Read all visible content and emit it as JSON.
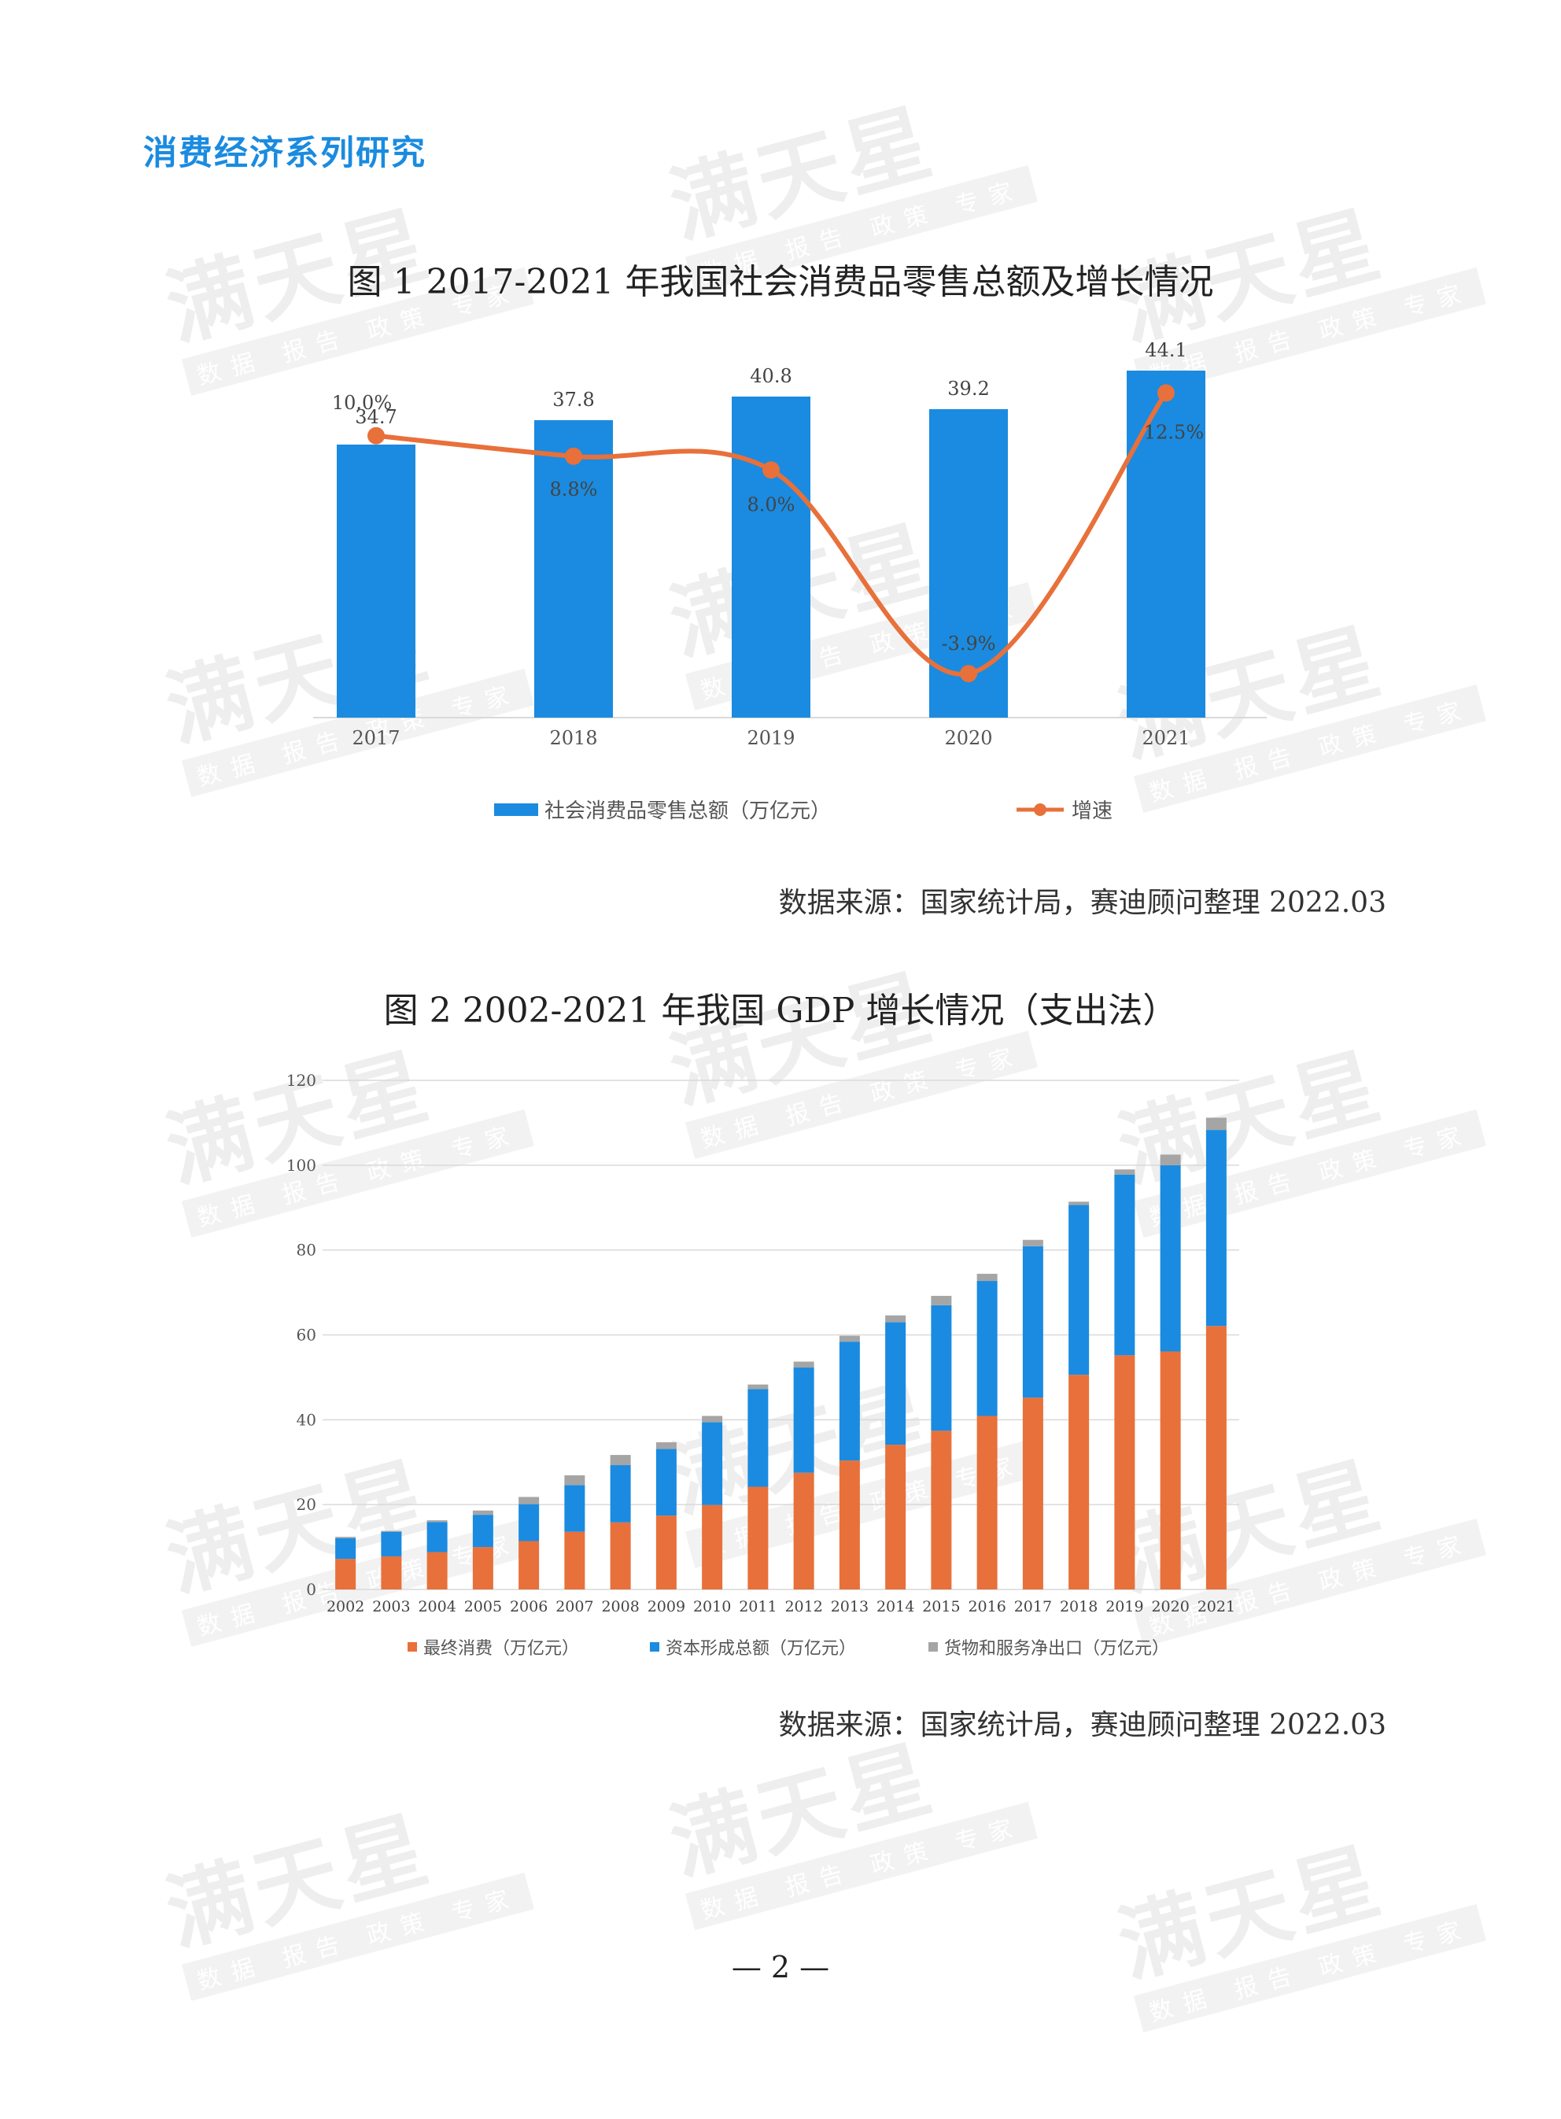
{
  "header": {
    "series_title": "消费经济系列研究"
  },
  "watermark": {
    "text": "满天星",
    "subtext": "数据 报告 政策 专家"
  },
  "figure1": {
    "title": "图 1   2017-2021 年我国社会消费品零售总额及增长情况",
    "source": "数据来源：国家统计局，赛迪顾问整理 2022.03",
    "legend": {
      "bar": "社会消费品零售总额（万亿元）",
      "line": "增速"
    }
  },
  "figure2": {
    "title": "图 2  2002-2021 年我国 GDP 增长情况（支出法）",
    "source": "数据来源：国家统计局，赛迪顾问整理 2022.03",
    "legend": {
      "s1": "最终消费（万亿元）",
      "s2": "资本形成总额（万亿元）",
      "s3": "货物和服务净出口（万亿元）"
    }
  },
  "page": {
    "number": "— 2 —"
  },
  "chart_data": [
    {
      "type": "bar",
      "categories": [
        "2017",
        "2018",
        "2019",
        "2020",
        "2021"
      ],
      "series": [
        {
          "name": "社会消费品零售总额（万亿元）",
          "type": "bar",
          "values": [
            34.7,
            37.8,
            40.8,
            39.2,
            44.1
          ],
          "labels": [
            "34.7",
            "37.8",
            "40.8",
            "39.2",
            "44.1"
          ],
          "color": "#1a8be0"
        },
        {
          "name": "增速",
          "type": "line",
          "values": [
            10.0,
            8.8,
            8.0,
            -3.9,
            12.5
          ],
          "labels": [
            "10.0%",
            "8.8%",
            "8.0%",
            "-3.9%",
            "12.5%"
          ],
          "color": "#e8703a"
        }
      ],
      "bar_ylim": [
        0,
        45
      ],
      "line_ylim": [
        -5,
        15
      ],
      "grid": false,
      "legend_position": "bottom"
    },
    {
      "type": "bar",
      "stacked": true,
      "categories": [
        "2002",
        "2003",
        "2004",
        "2005",
        "2006",
        "2007",
        "2008",
        "2009",
        "2010",
        "2011",
        "2012",
        "2013",
        "2014",
        "2015",
        "2016",
        "2017",
        "2018",
        "2019",
        "2020",
        "2021"
      ],
      "series": [
        {
          "name": "最终消费（万亿元）",
          "values": [
            7.2,
            7.8,
            8.8,
            10.0,
            11.4,
            13.6,
            15.8,
            17.4,
            19.9,
            24.2,
            27.5,
            30.4,
            34.1,
            37.4,
            40.9,
            45.2,
            50.6,
            55.2,
            56.1,
            62.1
          ],
          "color": "#e8703a"
        },
        {
          "name": "资本形成总额（万亿元）",
          "values": [
            4.9,
            5.8,
            7.1,
            7.6,
            8.7,
            11.0,
            13.5,
            15.7,
            19.5,
            23.0,
            24.8,
            28.0,
            28.9,
            29.6,
            31.8,
            35.7,
            40.0,
            42.6,
            43.9,
            46.2
          ],
          "color": "#1a8be0"
        },
        {
          "name": "货物和服务净出口（万亿元）",
          "values": [
            0.3,
            0.2,
            0.4,
            1.0,
            1.7,
            2.3,
            2.4,
            1.6,
            1.5,
            1.1,
            1.4,
            1.4,
            1.6,
            2.2,
            1.7,
            1.5,
            0.8,
            1.2,
            2.5,
            2.9
          ],
          "color": "#a5a5a5"
        }
      ],
      "ylim": [
        0,
        120
      ],
      "yticks": [
        0,
        20,
        40,
        60,
        80,
        100,
        120
      ],
      "grid": true,
      "legend_position": "bottom"
    }
  ]
}
